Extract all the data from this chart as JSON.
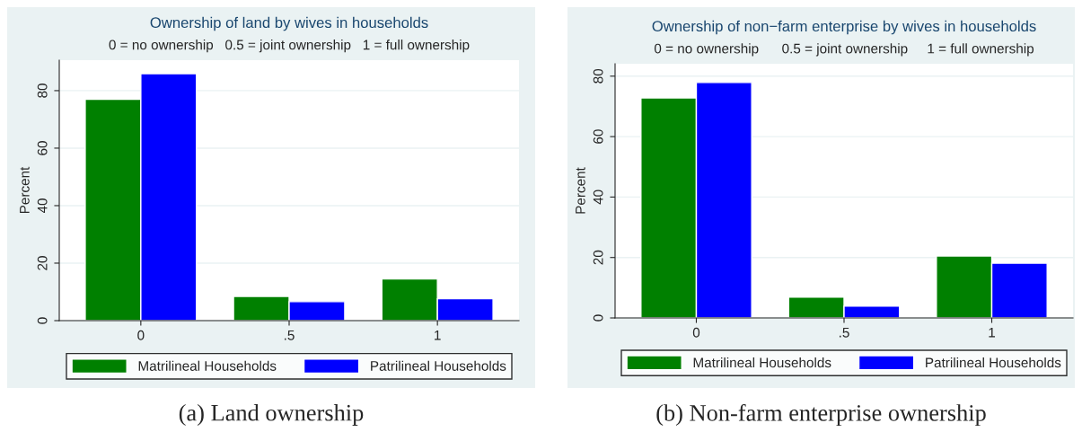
{
  "chart_data": [
    {
      "type": "bar",
      "title": "Ownership of land by wives in households",
      "subtitle": "0 = no ownership   0.5 = joint ownership   1 = full ownership",
      "ylabel": "Percent",
      "categories": [
        "0",
        ".5",
        "1"
      ],
      "series": [
        {
          "name": "Matrilineal Households",
          "color": "#008000",
          "values": [
            77.0,
            8.4,
            14.5
          ]
        },
        {
          "name": "Patrilineal Households",
          "color": "#0000ff",
          "values": [
            85.9,
            6.6,
            7.6
          ]
        }
      ],
      "ylim": [
        0,
        90.6
      ],
      "yticks": [
        0,
        20,
        40,
        60,
        80
      ],
      "grid": "y",
      "legend": "bottom",
      "annotations": [
        "(a) Land ownership"
      ]
    },
    {
      "type": "bar",
      "title": "Ownership of non−farm enterprise by wives in households",
      "subtitle": "0 = no ownership      0.5 = joint ownership     1 = full ownership",
      "ylabel": "Percent",
      "categories": [
        "0",
        ".5",
        "1"
      ],
      "series": [
        {
          "name": "Matrilineal Households",
          "color": "#008000",
          "values": [
            72.8,
            6.9,
            20.5
          ]
        },
        {
          "name": "Patrilineal Households",
          "color": "#0000ff",
          "values": [
            77.9,
            3.9,
            18.1
          ]
        }
      ],
      "ylim": [
        0,
        84.1
      ],
      "yticks": [
        0,
        20,
        40,
        60,
        80
      ],
      "grid": "y",
      "legend": "bottom",
      "annotations": [
        "(b) Non-farm enterprise ownership"
      ]
    }
  ]
}
